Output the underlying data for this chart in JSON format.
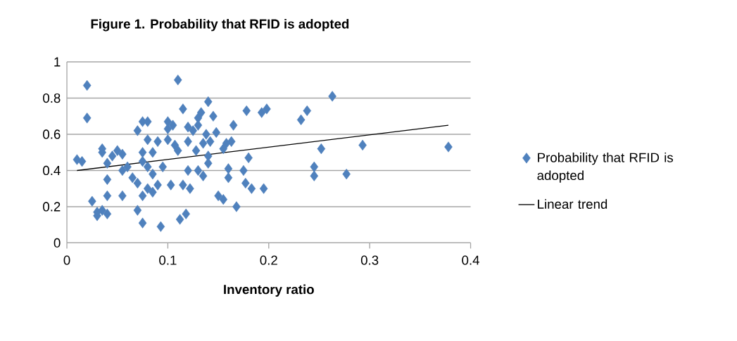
{
  "chart_data": {
    "type": "scatter",
    "title": "Figure 1. Probability that RFID is adopted",
    "xlabel": "Inventory ratio",
    "xlim": [
      0,
      0.4
    ],
    "ylim": [
      0,
      1
    ],
    "xticks": [
      0,
      0.1,
      0.2,
      0.3,
      0.4
    ],
    "yticks": [
      0,
      0.2,
      0.4,
      0.6,
      0.8,
      1
    ],
    "grid": "y",
    "legend": "right",
    "series": [
      {
        "name": "Probability that RFID is adopted",
        "color": "#4f81bd",
        "marker": "diamond",
        "x": [
          0.02,
          0.02,
          0.01,
          0.015,
          0.025,
          0.03,
          0.03,
          0.035,
          0.035,
          0.035,
          0.04,
          0.04,
          0.04,
          0.04,
          0.045,
          0.05,
          0.055,
          0.055,
          0.055,
          0.06,
          0.065,
          0.07,
          0.07,
          0.07,
          0.075,
          0.075,
          0.075,
          0.075,
          0.075,
          0.08,
          0.08,
          0.08,
          0.08,
          0.085,
          0.085,
          0.085,
          0.09,
          0.09,
          0.093,
          0.095,
          0.1,
          0.1,
          0.1,
          0.103,
          0.105,
          0.107,
          0.11,
          0.11,
          0.112,
          0.115,
          0.115,
          0.118,
          0.12,
          0.12,
          0.12,
          0.122,
          0.125,
          0.128,
          0.13,
          0.13,
          0.13,
          0.133,
          0.135,
          0.135,
          0.138,
          0.14,
          0.14,
          0.14,
          0.142,
          0.145,
          0.148,
          0.15,
          0.155,
          0.155,
          0.158,
          0.16,
          0.16,
          0.163,
          0.165,
          0.168,
          0.175,
          0.177,
          0.178,
          0.18,
          0.183,
          0.193,
          0.195,
          0.198,
          0.232,
          0.238,
          0.245,
          0.245,
          0.252,
          0.263,
          0.277,
          0.293,
          0.378
        ],
        "values": [
          0.87,
          0.69,
          0.46,
          0.45,
          0.23,
          0.17,
          0.15,
          0.18,
          0.5,
          0.52,
          0.44,
          0.35,
          0.26,
          0.16,
          0.48,
          0.51,
          0.49,
          0.4,
          0.26,
          0.42,
          0.36,
          0.18,
          0.33,
          0.62,
          0.67,
          0.5,
          0.45,
          0.26,
          0.11,
          0.3,
          0.42,
          0.57,
          0.67,
          0.5,
          0.38,
          0.28,
          0.56,
          0.32,
          0.09,
          0.42,
          0.67,
          0.63,
          0.57,
          0.32,
          0.65,
          0.54,
          0.51,
          0.9,
          0.13,
          0.74,
          0.32,
          0.16,
          0.4,
          0.64,
          0.56,
          0.3,
          0.62,
          0.51,
          0.69,
          0.65,
          0.4,
          0.72,
          0.55,
          0.37,
          0.6,
          0.78,
          0.48,
          0.44,
          0.56,
          0.7,
          0.61,
          0.26,
          0.24,
          0.52,
          0.55,
          0.41,
          0.36,
          0.56,
          0.65,
          0.2,
          0.4,
          0.33,
          0.73,
          0.47,
          0.3,
          0.72,
          0.3,
          0.74,
          0.68,
          0.73,
          0.42,
          0.37,
          0.52,
          0.81,
          0.38,
          0.54,
          0.53
        ]
      },
      {
        "name": "Linear trend",
        "type": "line",
        "color": "#000000",
        "marker": "none",
        "line_style": "solid",
        "x": [
          0.01,
          0.378
        ],
        "values": [
          0.4,
          0.65
        ]
      }
    ]
  }
}
